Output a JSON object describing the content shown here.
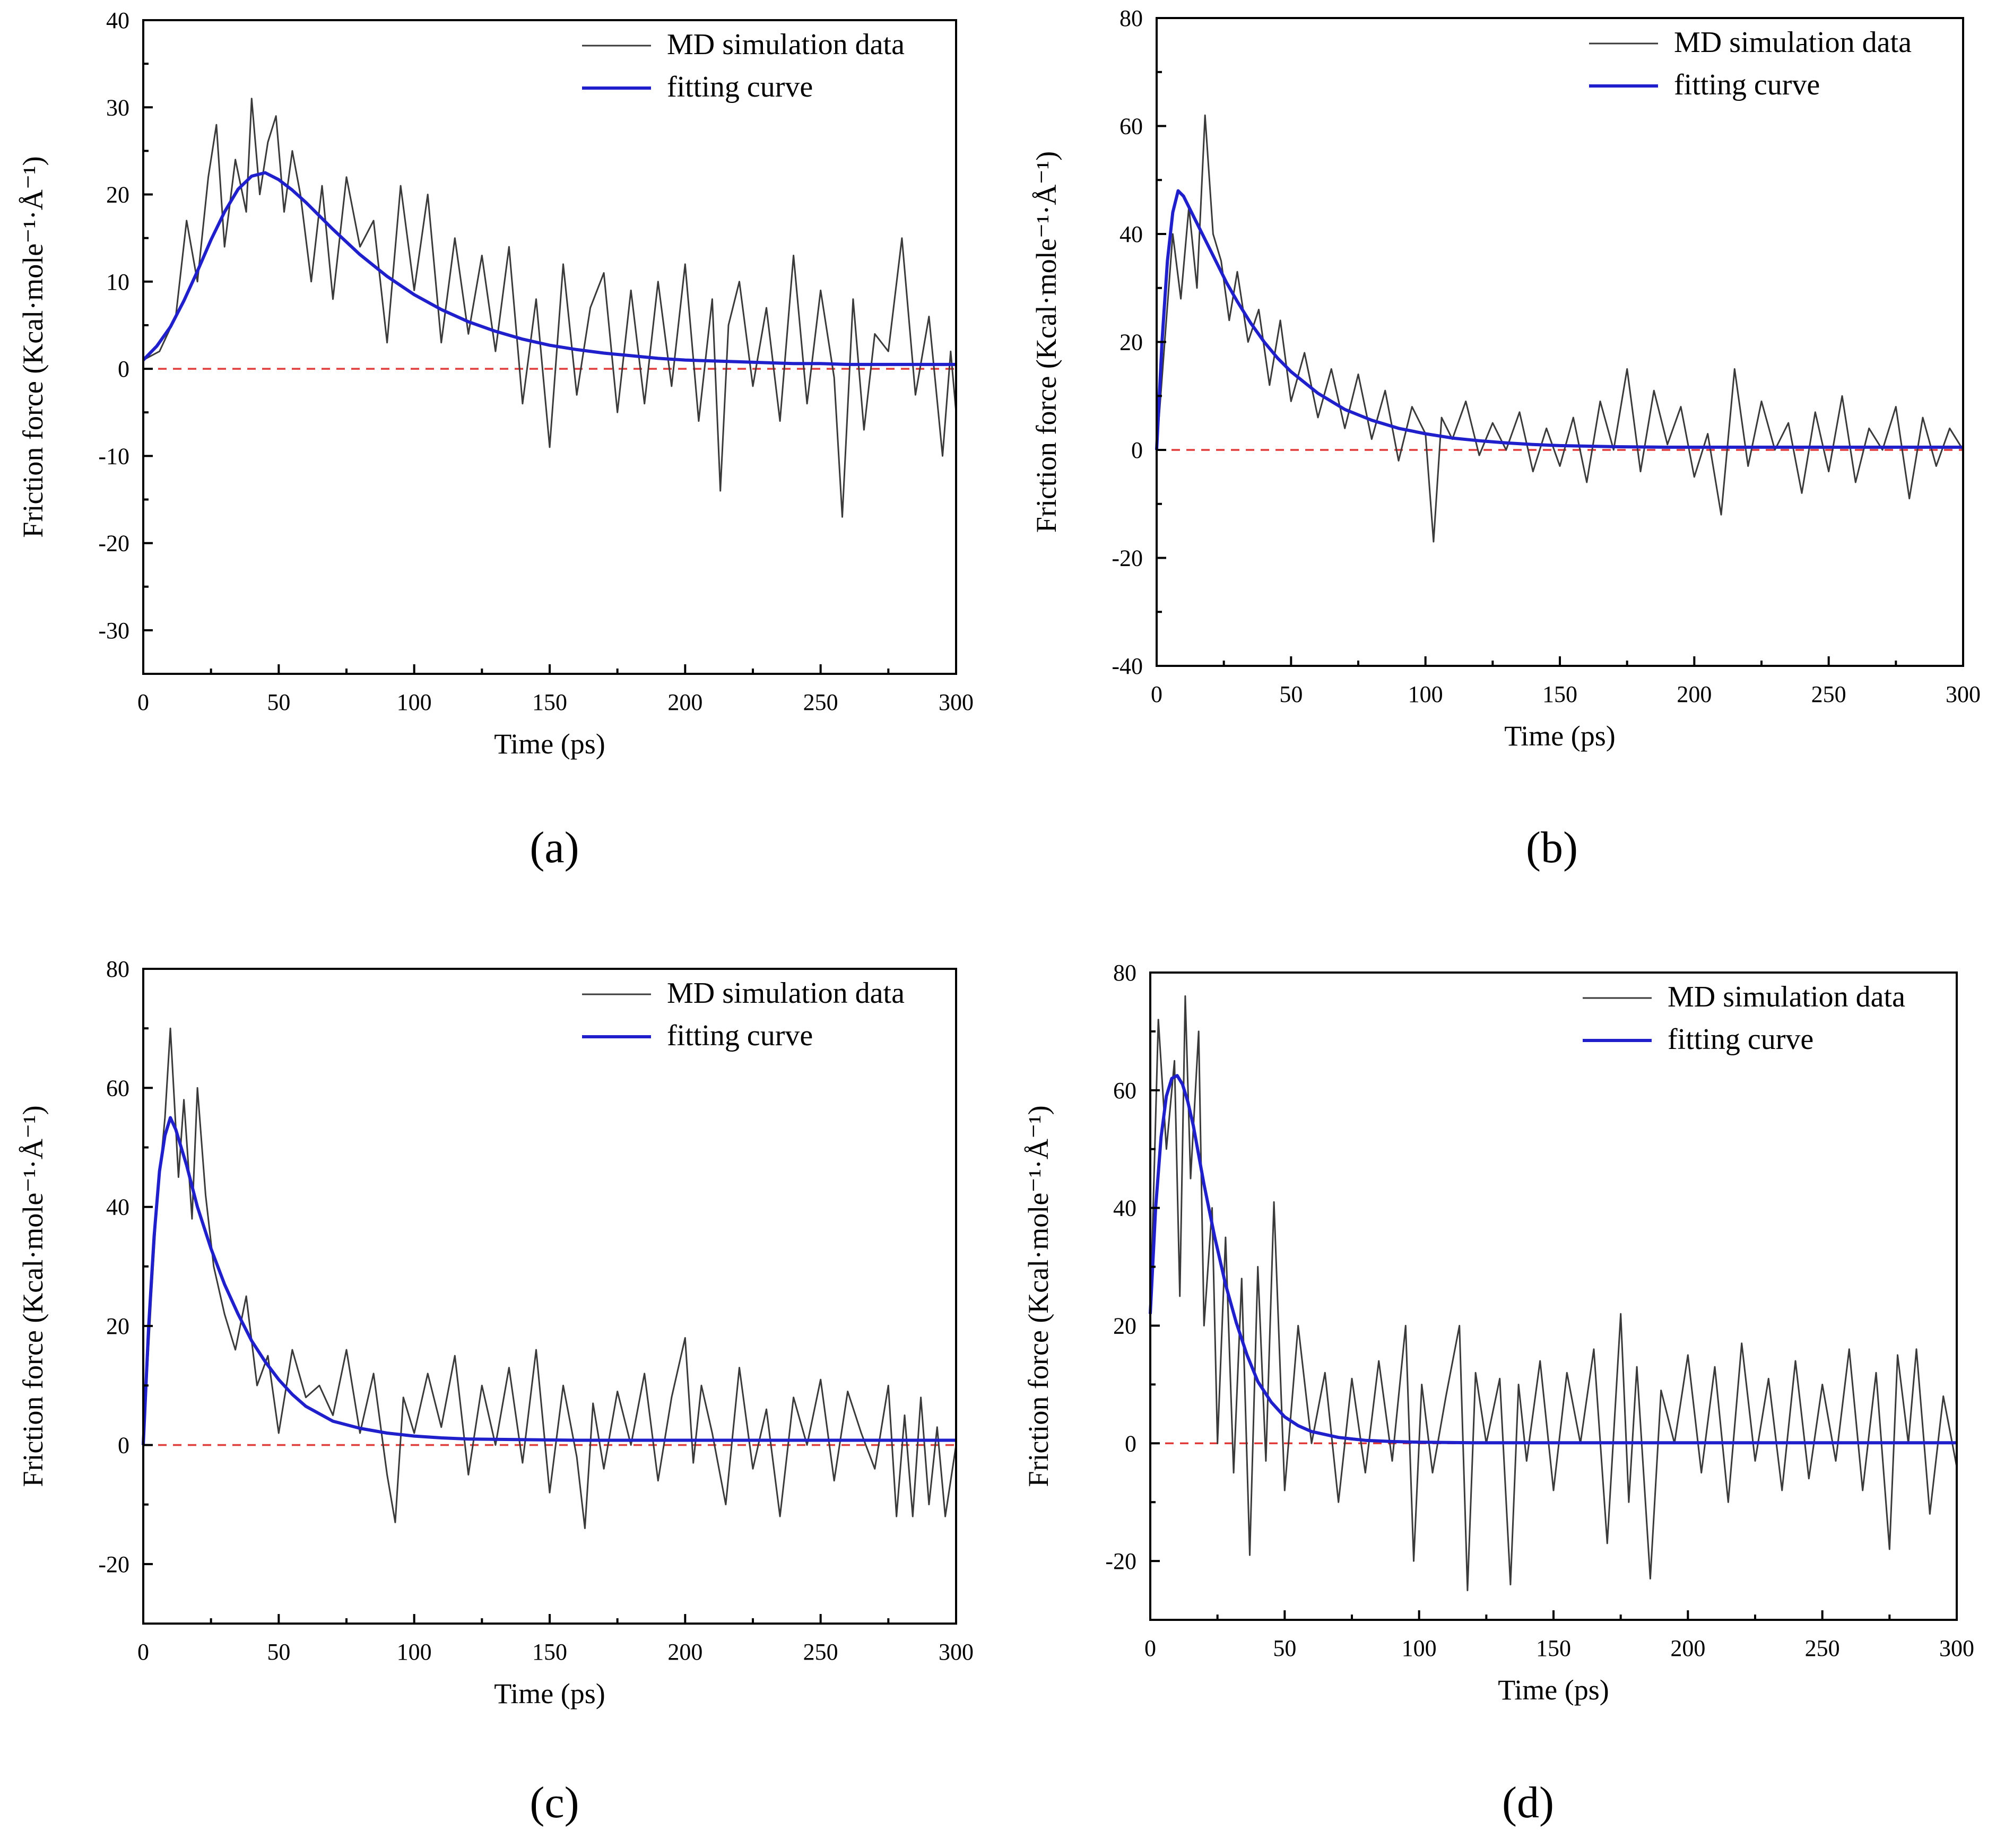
{
  "figure": {
    "legend": {
      "md_label": "MD simulation data",
      "fit_label": "fitting curve"
    },
    "colors": {
      "md": "#3a3a3a",
      "fit": "#1f1fcc",
      "zero": "#e03c3c"
    }
  },
  "chart_data": [
    {
      "id": "a",
      "type": "line",
      "panel_label": "(a)",
      "xlabel": "Time (ps)",
      "ylabel": "Friction force (Kcal·mole⁻¹·Å⁻¹)",
      "xlim": [
        0,
        300
      ],
      "ylim": [
        -35,
        40
      ],
      "xticks": [
        0,
        50,
        100,
        150,
        200,
        250,
        300
      ],
      "yticks": [
        -30,
        -20,
        -10,
        0,
        10,
        20,
        30,
        40
      ],
      "legend_position": "top-right",
      "series": [
        {
          "name": "MD simulation data",
          "x": [
            0,
            6,
            12,
            16,
            20,
            24,
            27,
            30,
            34,
            38,
            40,
            43,
            46,
            49,
            52,
            55,
            58,
            62,
            66,
            70,
            75,
            80,
            85,
            90,
            95,
            100,
            105,
            110,
            115,
            120,
            125,
            130,
            135,
            140,
            145,
            150,
            155,
            160,
            165,
            170,
            175,
            180,
            185,
            190,
            195,
            200,
            205,
            210,
            213,
            216,
            220,
            225,
            230,
            235,
            240,
            245,
            250,
            255,
            258,
            262,
            266,
            270,
            275,
            280,
            285,
            290,
            295,
            298,
            300
          ],
          "y": [
            1,
            2,
            6,
            17,
            10,
            22,
            28,
            14,
            24,
            18,
            31,
            20,
            26,
            29,
            18,
            25,
            20,
            10,
            21,
            8,
            22,
            14,
            17,
            3,
            21,
            9,
            20,
            3,
            15,
            4,
            13,
            2,
            14,
            -4,
            8,
            -9,
            12,
            -3,
            7,
            11,
            -5,
            9,
            -4,
            10,
            -2,
            12,
            -6,
            8,
            -14,
            5,
            10,
            -2,
            7,
            -6,
            13,
            -4,
            9,
            -1,
            -17,
            8,
            -7,
            4,
            2,
            15,
            -3,
            6,
            -10,
            2,
            -5
          ]
        },
        {
          "name": "fitting curve",
          "x": [
            0,
            5,
            10,
            15,
            20,
            25,
            30,
            35,
            40,
            45,
            50,
            55,
            60,
            70,
            80,
            90,
            100,
            110,
            120,
            130,
            140,
            150,
            160,
            170,
            180,
            190,
            200,
            210,
            220,
            230,
            240,
            250,
            260,
            270,
            280,
            290,
            300
          ],
          "y": [
            1,
            2.6,
            4.8,
            7.8,
            11.2,
            14.8,
            18.0,
            20.6,
            22.1,
            22.5,
            21.7,
            20.5,
            19.1,
            16.0,
            13.1,
            10.6,
            8.5,
            6.8,
            5.4,
            4.3,
            3.4,
            2.7,
            2.2,
            1.8,
            1.5,
            1.2,
            1.0,
            0.9,
            0.8,
            0.7,
            0.6,
            0.6,
            0.5,
            0.5,
            0.5,
            0.5,
            0.5
          ]
        }
      ]
    },
    {
      "id": "b",
      "type": "line",
      "panel_label": "(b)",
      "xlabel": "Time (ps)",
      "ylabel": "Friction force (Kcal·mole⁻¹·Å⁻¹)",
      "xlim": [
        0,
        300
      ],
      "ylim": [
        -40,
        80
      ],
      "xticks": [
        0,
        50,
        100,
        150,
        200,
        250,
        300
      ],
      "yticks": [
        -40,
        -20,
        0,
        20,
        40,
        60,
        80
      ],
      "legend_position": "top-right",
      "series": [
        {
          "name": "MD simulation data",
          "x": [
            0,
            3,
            6,
            9,
            12,
            15,
            18,
            21,
            24,
            27,
            30,
            34,
            38,
            42,
            46,
            50,
            55,
            60,
            65,
            70,
            75,
            80,
            85,
            90,
            95,
            100,
            103,
            106,
            110,
            115,
            120,
            125,
            130,
            135,
            140,
            145,
            150,
            155,
            160,
            165,
            170,
            175,
            180,
            185,
            190,
            195,
            200,
            205,
            210,
            215,
            220,
            225,
            230,
            235,
            240,
            245,
            250,
            255,
            260,
            265,
            270,
            275,
            280,
            285,
            290,
            295,
            300
          ],
          "y": [
            0,
            20,
            40,
            28,
            45,
            30,
            62,
            40,
            35,
            24,
            33,
            20,
            26,
            12,
            24,
            9,
            18,
            6,
            15,
            4,
            14,
            2,
            11,
            -2,
            8,
            3,
            -17,
            6,
            2,
            9,
            -1,
            5,
            0,
            7,
            -4,
            4,
            -3,
            6,
            -6,
            9,
            0,
            15,
            -4,
            11,
            1,
            8,
            -5,
            3,
            -12,
            15,
            -3,
            9,
            0,
            5,
            -8,
            7,
            -4,
            10,
            -6,
            4,
            0,
            8,
            -9,
            6,
            -3,
            4,
            0
          ]
        },
        {
          "name": "fitting curve",
          "x": [
            0,
            2,
            4,
            6,
            8,
            10,
            14,
            18,
            22,
            26,
            30,
            35,
            40,
            45,
            50,
            60,
            70,
            80,
            90,
            100,
            110,
            120,
            130,
            140,
            150,
            170,
            190,
            210,
            230,
            250,
            270,
            300
          ],
          "y": [
            0,
            20,
            35,
            44,
            48,
            47,
            43,
            39,
            35,
            31,
            27.5,
            23.5,
            20,
            17,
            14.5,
            10.5,
            7.5,
            5.5,
            4,
            3,
            2.2,
            1.7,
            1.3,
            1.0,
            0.8,
            0.6,
            0.5,
            0.5,
            0.5,
            0.5,
            0.5,
            0.5
          ]
        }
      ]
    },
    {
      "id": "c",
      "type": "line",
      "panel_label": "(c)",
      "xlabel": "Time (ps)",
      "ylabel": "Friction force (Kcal·mole⁻¹·Å⁻¹)",
      "xlim": [
        0,
        300
      ],
      "ylim": [
        -30,
        80
      ],
      "xticks": [
        0,
        50,
        100,
        150,
        200,
        250,
        300
      ],
      "yticks": [
        -20,
        0,
        20,
        40,
        60,
        80
      ],
      "legend_position": "top-right",
      "series": [
        {
          "name": "MD simulation data",
          "x": [
            0,
            3,
            5,
            8,
            10,
            13,
            15,
            18,
            20,
            23,
            26,
            30,
            34,
            38,
            42,
            46,
            50,
            55,
            60,
            65,
            70,
            75,
            80,
            85,
            90,
            93,
            96,
            100,
            105,
            110,
            115,
            120,
            125,
            130,
            135,
            140,
            145,
            150,
            155,
            160,
            163,
            166,
            170,
            175,
            180,
            185,
            190,
            195,
            200,
            203,
            206,
            210,
            215,
            220,
            225,
            230,
            235,
            240,
            245,
            250,
            255,
            260,
            265,
            270,
            275,
            278,
            281,
            284,
            287,
            290,
            293,
            296,
            300
          ],
          "y": [
            0,
            25,
            40,
            55,
            70,
            45,
            58,
            38,
            60,
            42,
            30,
            22,
            16,
            25,
            10,
            15,
            2,
            16,
            8,
            10,
            5,
            16,
            2,
            12,
            -5,
            -13,
            8,
            2,
            12,
            3,
            15,
            -5,
            10,
            0,
            13,
            -3,
            16,
            -8,
            10,
            -2,
            -14,
            7,
            -4,
            9,
            0,
            12,
            -6,
            8,
            18,
            -3,
            10,
            2,
            -10,
            13,
            -4,
            6,
            -12,
            8,
            0,
            11,
            -6,
            9,
            2,
            -4,
            10,
            -12,
            5,
            -12,
            8,
            -10,
            3,
            -12,
            0
          ]
        },
        {
          "name": "fitting curve",
          "x": [
            0,
            2,
            4,
            6,
            8,
            10,
            12,
            16,
            20,
            25,
            30,
            35,
            40,
            45,
            50,
            55,
            60,
            70,
            80,
            90,
            100,
            110,
            120,
            140,
            160,
            180,
            200,
            220,
            240,
            260,
            280,
            300
          ],
          "y": [
            0,
            20,
            35,
            46,
            52,
            55,
            53,
            47,
            40,
            33,
            27,
            22,
            17.5,
            14,
            11,
            8.5,
            6.5,
            4,
            2.8,
            2,
            1.5,
            1.2,
            1.0,
            0.9,
            0.8,
            0.8,
            0.8,
            0.8,
            0.8,
            0.8,
            0.8,
            0.8
          ]
        }
      ]
    },
    {
      "id": "d",
      "type": "line",
      "panel_label": "(d)",
      "xlabel": "Time (ps)",
      "ylabel": "Friction force (Kcal·mole⁻¹·Å⁻¹)",
      "xlim": [
        0,
        300
      ],
      "ylim": [
        -30,
        80
      ],
      "xticks": [
        0,
        50,
        100,
        150,
        200,
        250,
        300
      ],
      "yticks": [
        -20,
        0,
        20,
        40,
        60,
        80
      ],
      "legend_position": "top-right",
      "series": [
        {
          "name": "MD simulation data",
          "x": [
            0,
            3,
            6,
            9,
            11,
            13,
            15,
            18,
            20,
            23,
            25,
            28,
            31,
            34,
            37,
            40,
            43,
            46,
            50,
            55,
            60,
            65,
            70,
            75,
            80,
            85,
            90,
            95,
            98,
            101,
            105,
            110,
            115,
            118,
            121,
            125,
            130,
            134,
            137,
            140,
            145,
            150,
            155,
            160,
            165,
            170,
            175,
            178,
            181,
            186,
            190,
            195,
            200,
            205,
            210,
            215,
            220,
            225,
            230,
            235,
            240,
            245,
            250,
            255,
            260,
            265,
            270,
            275,
            278,
            282,
            285,
            290,
            295,
            300
          ],
          "y": [
            22,
            72,
            50,
            65,
            25,
            76,
            45,
            70,
            20,
            40,
            0,
            35,
            -5,
            28,
            -19,
            30,
            -3,
            41,
            -8,
            20,
            0,
            12,
            -10,
            11,
            -5,
            14,
            -3,
            20,
            -20,
            10,
            -5,
            8,
            20,
            -25,
            12,
            0,
            11,
            -24,
            10,
            -3,
            14,
            -8,
            12,
            0,
            16,
            -17,
            22,
            -10,
            13,
            -23,
            9,
            0,
            15,
            -5,
            13,
            -10,
            17,
            -3,
            11,
            -8,
            14,
            -6,
            10,
            -3,
            16,
            -8,
            12,
            -18,
            15,
            0,
            16,
            -12,
            8,
            -4
          ]
        },
        {
          "name": "fitting curve",
          "x": [
            0,
            2,
            4,
            6,
            8,
            10,
            12,
            14,
            16,
            18,
            20,
            24,
            28,
            32,
            36,
            40,
            45,
            50,
            55,
            60,
            70,
            80,
            90,
            100,
            120,
            140,
            160,
            180,
            200,
            250,
            300
          ],
          "y": [
            22,
            40,
            52,
            59,
            62,
            62.5,
            61,
            58,
            54,
            49,
            44,
            35,
            27,
            20.5,
            15,
            10.5,
            7,
            4.5,
            3,
            2,
            1,
            0.5,
            0.3,
            0.2,
            0.1,
            0.1,
            0.1,
            0.1,
            0.1,
            0.1,
            0.1
          ]
        }
      ]
    }
  ]
}
